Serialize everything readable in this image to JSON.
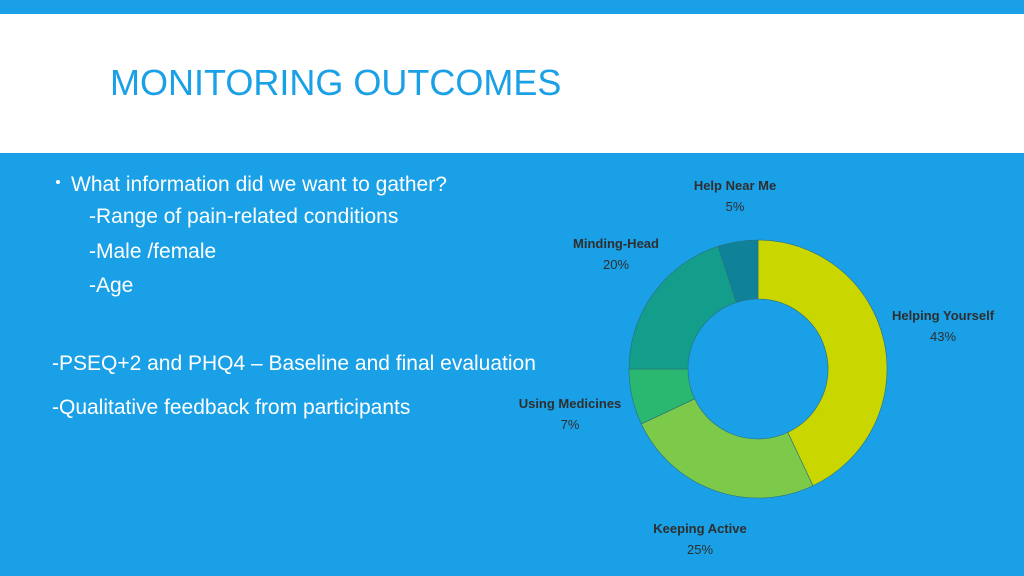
{
  "slide": {
    "title": "MONITORING OUTCOMES",
    "bullet_heading": "What information did we want to gather?",
    "sub_items": [
      "-Range of pain-related conditions",
      "-Male /female",
      "-Age"
    ],
    "line_pseq": "-PSEQ+2 and PHQ4 – Baseline and final evaluation",
    "line_feedback": "-Qualitative feedback from participants"
  },
  "colors": {
    "background": "#1aa0e6",
    "title": "#1aa0e6"
  },
  "chart_data": {
    "type": "pie",
    "style": "donut",
    "title": "",
    "categories": [
      "Helping Yourself",
      "Keeping Active",
      "Using Medicines",
      "Minding-Head",
      "Help Near Me"
    ],
    "values": [
      43,
      25,
      7,
      20,
      5
    ],
    "labels": [
      "43%",
      "25%",
      "7%",
      "20%",
      "5%"
    ],
    "colors": [
      "#cad600",
      "#7dc94a",
      "#2ab870",
      "#139e8c",
      "#0f8299"
    ]
  }
}
